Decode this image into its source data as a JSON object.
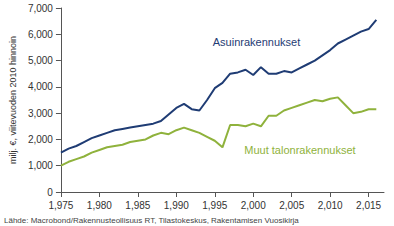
{
  "chart_data": {
    "type": "line",
    "y_label": "milj. €, viitevuoden 2010 hinnoin",
    "source": "Lähde: Macrobond/Rakennusteollisuus RT, Tilastokeskus, Rakentamisen Vuosikirja",
    "x": [
      1975,
      1976,
      1977,
      1978,
      1979,
      1980,
      1981,
      1982,
      1983,
      1984,
      1985,
      1986,
      1987,
      1988,
      1989,
      1990,
      1991,
      1992,
      1993,
      1994,
      1995,
      1996,
      1997,
      1998,
      1999,
      2000,
      2001,
      2002,
      2003,
      2004,
      2005,
      2006,
      2007,
      2008,
      2009,
      2010,
      2011,
      2012,
      2013,
      2014,
      2015,
      2016
    ],
    "series": [
      {
        "name": "Asuinrakennukset",
        "color": "#1f3c74",
        "values": [
          1500,
          1650,
          1750,
          1900,
          2050,
          2150,
          2250,
          2350,
          2400,
          2450,
          2500,
          2550,
          2600,
          2700,
          2950,
          3200,
          3350,
          3150,
          3100,
          3500,
          3950,
          4150,
          4500,
          4550,
          4650,
          4450,
          4750,
          4500,
          4500,
          4600,
          4550,
          4700,
          4850,
          5000,
          5200,
          5400,
          5650,
          5800,
          5950,
          6100,
          6200,
          6550
        ]
      },
      {
        "name": "Muut talonrakennukset",
        "color": "#8fb23c",
        "values": [
          1000,
          1150,
          1250,
          1350,
          1500,
          1600,
          1700,
          1750,
          1800,
          1900,
          1950,
          2000,
          2150,
          2250,
          2200,
          2350,
          2450,
          2350,
          2250,
          2100,
          1950,
          1700,
          2550,
          2550,
          2500,
          2600,
          2500,
          2900,
          2900,
          3100,
          3200,
          3300,
          3400,
          3500,
          3450,
          3550,
          3600,
          3300,
          3000,
          3050,
          3150,
          3150
        ]
      }
    ],
    "xlim": [
      1975,
      2017
    ],
    "xticks": [
      1975,
      1980,
      1985,
      1990,
      1995,
      2000,
      2005,
      2010,
      2015
    ],
    "ylim": [
      0,
      7000
    ],
    "yticks": [
      0,
      1000,
      2000,
      3000,
      4000,
      5000,
      6000,
      7000
    ],
    "grid": false
  }
}
